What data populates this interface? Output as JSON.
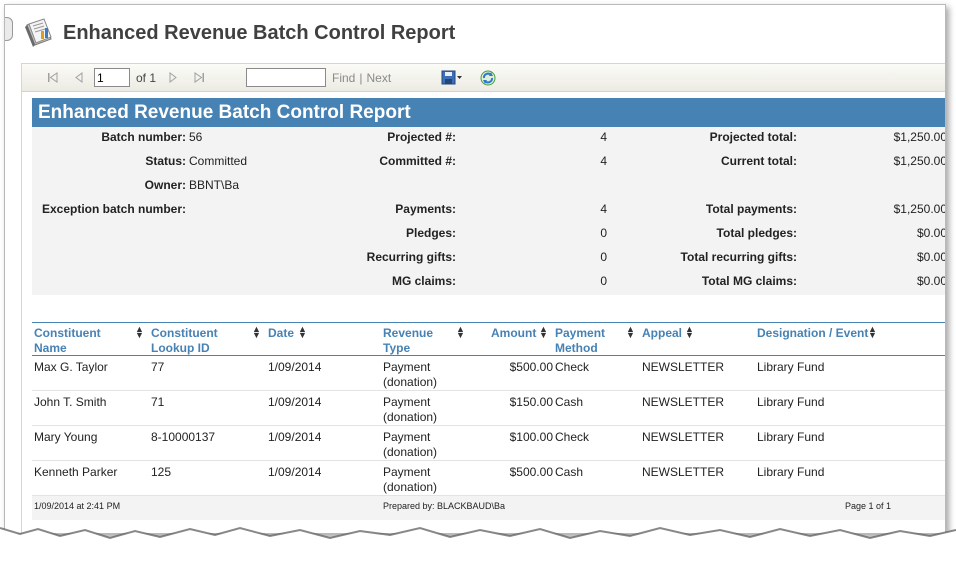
{
  "page": {
    "title": "Enhanced Revenue Batch Control Report"
  },
  "toolbar": {
    "page_value": "1",
    "of_text": "of 1",
    "find_label": "Find",
    "separator": "|",
    "next_label": "Next"
  },
  "report": {
    "banner_title": "Enhanced Revenue Batch Control Report",
    "summary": {
      "batch_number_label": "Batch number:",
      "batch_number": "56",
      "status_label": "Status:",
      "status": "Committed",
      "owner_label": "Owner:",
      "owner": "BBNT\\Ba",
      "exception_label": "Exception batch number:",
      "projected_count_label": "Projected #:",
      "projected_count": "4",
      "committed_count_label": "Committed #:",
      "committed_count": "4",
      "payments_label": "Payments:",
      "payments": "4",
      "pledges_label": "Pledges:",
      "pledges": "0",
      "recurring_label": "Recurring gifts:",
      "recurring": "0",
      "mg_label": "MG claims:",
      "mg": "0",
      "projected_total_label": "Projected total:",
      "projected_total": "$1,250.00",
      "current_total_label": "Current total:",
      "current_total": "$1,250.00",
      "total_payments_label": "Total payments:",
      "total_payments": "$1,250.00",
      "total_pledges_label": "Total pledges:",
      "total_pledges": "$0.00",
      "total_recurring_label": "Total recurring gifts:",
      "total_recurring": "$0.00",
      "total_mg_label": "Total MG claims:",
      "total_mg": "$0.00"
    },
    "columns": {
      "constituent_name": [
        "Constituent",
        "Name"
      ],
      "lookup_id": [
        "Constituent",
        "Lookup ID"
      ],
      "date": "Date",
      "revenue_type": [
        "Revenue",
        "Type"
      ],
      "amount": "Amount",
      "payment_method": [
        "Payment",
        "Method"
      ],
      "appeal": "Appeal",
      "designation": "Designation / Event"
    },
    "rows": [
      {
        "name": "Max G. Taylor",
        "lookup": "77",
        "date": "1/09/2014",
        "type1": "Payment",
        "type2": "(donation)",
        "amount": "$500.00",
        "method": "Check",
        "appeal": "NEWSLETTER",
        "designation": "Library Fund"
      },
      {
        "name": "John T. Smith",
        "lookup": "71",
        "date": "1/09/2014",
        "type1": "Payment",
        "type2": "(donation)",
        "amount": "$150.00",
        "method": "Cash",
        "appeal": "NEWSLETTER",
        "designation": "Library Fund"
      },
      {
        "name": "Mary Young",
        "lookup": "8-10000137",
        "date": "1/09/2014",
        "type1": "Payment",
        "type2": "(donation)",
        "amount": "$100.00",
        "method": "Check",
        "appeal": "NEWSLETTER",
        "designation": "Library Fund"
      },
      {
        "name": "Kenneth Parker",
        "lookup": "125",
        "date": "1/09/2014",
        "type1": "Payment",
        "type2": "(donation)",
        "amount": "$500.00",
        "method": "Cash",
        "appeal": "NEWSLETTER",
        "designation": "Library Fund"
      }
    ],
    "footer": {
      "timestamp": "1/09/2014 at 2:41 PM",
      "prepared_by": "Prepared by: BLACKBAUD\\Ba",
      "page_info": "Page 1 of 1"
    }
  },
  "colors": {
    "banner": "#4682b4",
    "header_text": "#4682b4"
  }
}
